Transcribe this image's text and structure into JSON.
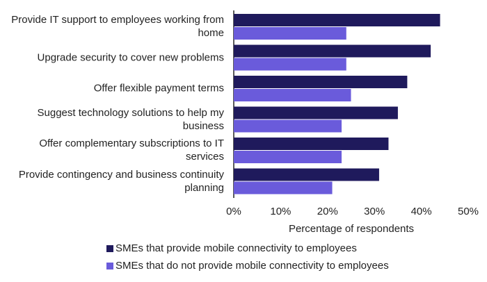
{
  "chart_data": {
    "type": "barh",
    "categories": [
      "Provide IT support to employees working from home",
      "Upgrade security to cover new problems",
      "Offer flexible payment terms",
      "Suggest technology solutions to help my business",
      "Offer complementary subscriptions to IT services",
      "Provide contingency and business continuity planning"
    ],
    "series": [
      {
        "name": "SMEs that provide mobile connectivity to employees",
        "color": "#1f1a5c",
        "values": [
          44,
          42,
          37,
          35,
          33,
          31
        ]
      },
      {
        "name": "SMEs that do not provide mobile connectivity to employees",
        "color": "#6a5bdb",
        "values": [
          24,
          24,
          25,
          23,
          23,
          21
        ]
      }
    ],
    "x_label": "Percentage of respondents",
    "xlim": [
      0,
      50
    ],
    "xticks": [
      {
        "value": 0,
        "label": "0%"
      },
      {
        "value": 10,
        "label": "10%"
      },
      {
        "value": 20,
        "label": "20%"
      },
      {
        "value": 30,
        "label": "30%"
      },
      {
        "value": 40,
        "label": "40%"
      },
      {
        "value": 50,
        "label": "50%"
      }
    ],
    "grid": false
  }
}
